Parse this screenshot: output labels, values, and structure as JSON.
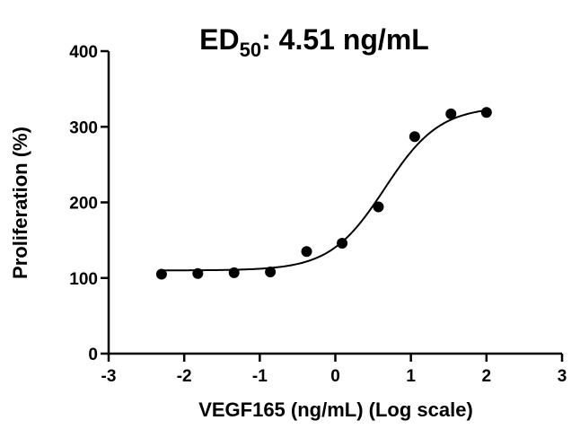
{
  "chart_data": {
    "type": "scatter",
    "title": {
      "prefix": "ED",
      "subscript": "50",
      "suffix": ": 4.51 ng/mL"
    },
    "xlabel": "VEGF165 (ng/mL) (Log scale)",
    "ylabel": "Proliferation (%)",
    "xlim": [
      -3,
      3
    ],
    "ylim": [
      0,
      400
    ],
    "x_ticks": [
      -3,
      -2,
      -1,
      0,
      1,
      2,
      3
    ],
    "x_tick_labels": [
      "-3",
      "-2",
      "-1",
      "0",
      "1",
      "2",
      "3"
    ],
    "y_ticks": [
      0,
      100,
      200,
      300,
      400
    ],
    "y_tick_labels": [
      "0",
      "100",
      "200",
      "300",
      "400"
    ],
    "grid": false,
    "legend": "none",
    "colors": {
      "points": "#000000",
      "curve": "#000000",
      "axes": "#000000"
    },
    "series": [
      {
        "x": [
          -2.3,
          -1.82,
          -1.34,
          -0.86,
          -0.38,
          0.09,
          0.57,
          1.05,
          1.53,
          2.0
        ],
        "y": [
          105,
          106,
          107,
          108,
          135,
          146,
          194,
          287,
          317,
          319
        ]
      }
    ],
    "fit": {
      "model": "4PL",
      "bottom": 110,
      "top": 327,
      "log_ed50": 0.654,
      "hill_slope": 1.2
    }
  }
}
